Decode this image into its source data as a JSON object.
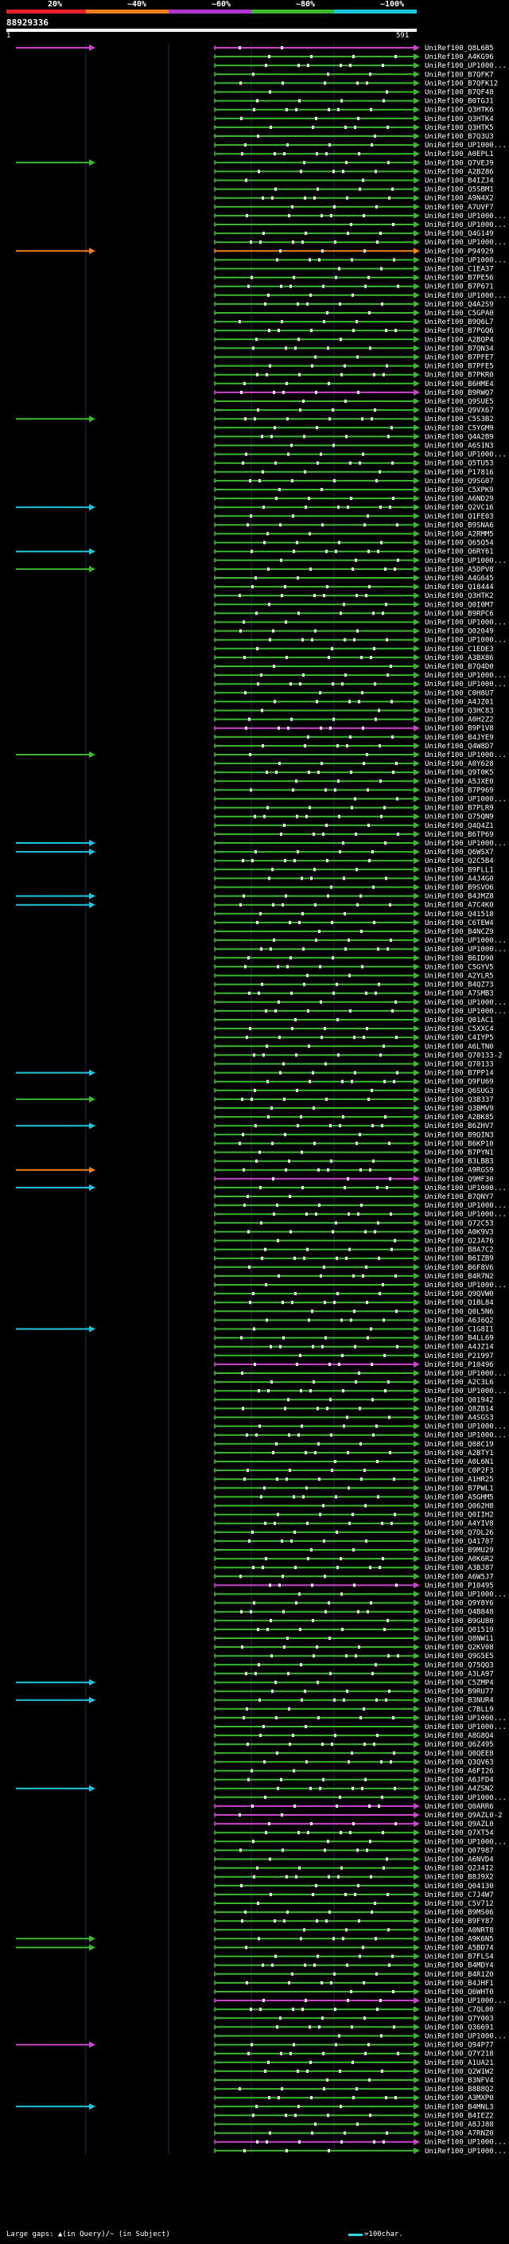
{
  "header": {
    "pct_labels": [
      "20%",
      "~40%",
      "~60%",
      "~80%",
      "~100%"
    ],
    "pct_colors": [
      "#e8202a",
      "#f07f18",
      "#b136cf",
      "#3bb82f",
      "#1cc6dd"
    ],
    "query_id": "88929336",
    "ruler_start": "1",
    "ruler_end": "591"
  },
  "hits": [
    {
      "label": "UniRef100_Q8L6B5",
      "color": "#cc44cc"
    },
    {
      "label": "UniRef100_A4KG96",
      "color": "#3bb82f"
    },
    {
      "label": "UniRef100_UP1000...",
      "color": "#3bb82f"
    },
    {
      "label": "UniRef100_B7QFK7",
      "color": "#3bb82f"
    },
    {
      "label": "UniRef100_B7QFK12",
      "color": "#3bb82f"
    },
    {
      "label": "UniRef100_B7QF48",
      "color": "#3bb82f"
    },
    {
      "label": "UniRef100_B0TGJ1",
      "color": "#3bb82f"
    },
    {
      "label": "UniRef100_Q3HTK6",
      "color": "#3bb82f"
    },
    {
      "label": "UniRef100_Q3HTK4",
      "color": "#3bb82f"
    },
    {
      "label": "UniRef100_Q3HTK5",
      "color": "#3bb82f"
    },
    {
      "label": "UniRef100_B7Q3U3",
      "color": "#3bb82f"
    },
    {
      "label": "UniRef100_UP1000...",
      "color": "#3bb82f"
    },
    {
      "label": "UniRef100_A0EPL1",
      "color": "#3bb82f"
    },
    {
      "label": "UniRef100_Q7VEJ9",
      "color": "#3bb82f"
    },
    {
      "label": "UniRef100_A2BZ86",
      "color": "#3bb82f"
    },
    {
      "label": "UniRef100_B4IZJ4",
      "color": "#3bb82f"
    },
    {
      "label": "UniRef100_Q5SBM1",
      "color": "#3bb82f"
    },
    {
      "label": "UniRef100_A9N4X2",
      "color": "#3bb82f"
    },
    {
      "label": "UniRef100_A7UVF7",
      "color": "#3bb82f"
    },
    {
      "label": "UniRef100_UP1000...",
      "color": "#3bb82f"
    },
    {
      "label": "UniRef100_UP1000...",
      "color": "#3bb82f"
    },
    {
      "label": "UniRef100_Q4G149",
      "color": "#3bb82f"
    },
    {
      "label": "UniRef100_UP1000...",
      "color": "#3bb82f"
    },
    {
      "label": "UniRef100_P94929",
      "color": "#f07f18"
    },
    {
      "label": "UniRef100_UP1000...",
      "color": "#3bb82f"
    },
    {
      "label": "UniRef100_C1EA37",
      "color": "#3bb82f"
    },
    {
      "label": "UniRef100_B7PE56",
      "color": "#3bb82f"
    },
    {
      "label": "UniRef100_B7P671",
      "color": "#3bb82f"
    },
    {
      "label": "UniRef100_UP1000...",
      "color": "#3bb82f"
    },
    {
      "label": "UniRef100_Q4A2S9",
      "color": "#3bb82f"
    },
    {
      "label": "UniRef100_C5GPA0",
      "color": "#3bb82f"
    },
    {
      "label": "UniRef100_B9Q6L7",
      "color": "#3bb82f"
    },
    {
      "label": "UniRef100_B7PGQ6",
      "color": "#3bb82f"
    },
    {
      "label": "UniRef100_A2BQP4",
      "color": "#3bb82f"
    },
    {
      "label": "UniRef100_B7QN34",
      "color": "#3bb82f"
    },
    {
      "label": "UniRef100_B7PFE7",
      "color": "#3bb82f"
    },
    {
      "label": "UniRef100_B7PFE5",
      "color": "#3bb82f"
    },
    {
      "label": "UniRef100_B7PKR0",
      "color": "#3bb82f"
    },
    {
      "label": "UniRef100_B6HME4",
      "color": "#3bb82f"
    },
    {
      "label": "UniRef100_B9RWQ7",
      "color": "#cc44cc"
    },
    {
      "label": "UniRef100_Q9SUE5",
      "color": "#3bb82f"
    },
    {
      "label": "UniRef100_Q9VX67",
      "color": "#3bb82f"
    },
    {
      "label": "UniRef100_C5S3B2",
      "color": "#3bb82f"
    },
    {
      "label": "UniRef100_C5YGM9",
      "color": "#3bb82f"
    },
    {
      "label": "UniRef100_Q4A2B9",
      "color": "#3bb82f"
    },
    {
      "label": "UniRef100_A6S1N3",
      "color": "#3bb82f"
    },
    {
      "label": "UniRef100_UP1000...",
      "color": "#3bb82f"
    },
    {
      "label": "UniRef100_Q5TU53",
      "color": "#3bb82f"
    },
    {
      "label": "UniRef100_P17816",
      "color": "#3bb82f"
    },
    {
      "label": "UniRef100_Q9SG07",
      "color": "#3bb82f"
    },
    {
      "label": "UniRef100_C5XPK9",
      "color": "#3bb82f"
    },
    {
      "label": "UniRef100_A6ND29",
      "color": "#3bb82f"
    },
    {
      "label": "UniRef100_Q2VC16",
      "color": "#3bb82f"
    },
    {
      "label": "UniRef100_Q1FE03",
      "color": "#3bb82f"
    },
    {
      "label": "UniRef100_B9SNA6",
      "color": "#3bb82f"
    },
    {
      "label": "UniRef100_A2RMM5",
      "color": "#3bb82f"
    },
    {
      "label": "UniRef100_Q65Q54",
      "color": "#3bb82f"
    },
    {
      "label": "UniRef100_Q6RY61",
      "color": "#3bb82f"
    },
    {
      "label": "UniRef100_UP1000...",
      "color": "#3bb82f"
    },
    {
      "label": "UniRef100_A5DPV8",
      "color": "#3bb82f"
    },
    {
      "label": "UniRef100_A4G645",
      "color": "#3bb82f"
    },
    {
      "label": "UniRef100_Q18444",
      "color": "#3bb82f"
    },
    {
      "label": "UniRef100_Q3HTK2",
      "color": "#3bb82f"
    },
    {
      "label": "UniRef100_Q0I0M7",
      "color": "#3bb82f"
    },
    {
      "label": "UniRef100_B9RPC6",
      "color": "#3bb82f"
    },
    {
      "label": "UniRef100_UP1000...",
      "color": "#3bb82f"
    },
    {
      "label": "UniRef100_Q02049",
      "color": "#3bb82f"
    },
    {
      "label": "UniRef100_UP1000...",
      "color": "#3bb82f"
    },
    {
      "label": "UniRef100_C1EDE3",
      "color": "#3bb82f"
    },
    {
      "label": "UniRef100_A3BX86",
      "color": "#3bb82f"
    },
    {
      "label": "UniRef100_B7Q4D0",
      "color": "#3bb82f"
    },
    {
      "label": "UniRef100_UP1000...",
      "color": "#3bb82f"
    },
    {
      "label": "UniRef100_UP1000...",
      "color": "#3bb82f"
    },
    {
      "label": "UniRef100_C0H8U7",
      "color": "#3bb82f"
    },
    {
      "label": "UniRef100_A4JZ01",
      "color": "#3bb82f"
    },
    {
      "label": "UniRef100_Q3HC83",
      "color": "#3bb82f"
    },
    {
      "label": "UniRef100_A0H2Z2",
      "color": "#3bb82f"
    },
    {
      "label": "UniRef100_B9P1V8",
      "color": "#cc44cc"
    },
    {
      "label": "UniRef100_B4JYE9",
      "color": "#3bb82f"
    },
    {
      "label": "UniRef100_Q4W8D7",
      "color": "#3bb82f"
    },
    {
      "label": "UniRef100_UP1000...",
      "color": "#3bb82f"
    },
    {
      "label": "UniRef100_A0Y628",
      "color": "#3bb82f"
    },
    {
      "label": "UniRef100_Q9T0K5",
      "color": "#3bb82f"
    },
    {
      "label": "UniRef100_A5JXE0",
      "color": "#3bb82f"
    },
    {
      "label": "UniRef100_B7P969",
      "color": "#3bb82f"
    },
    {
      "label": "UniRef100_UP1000...",
      "color": "#3bb82f"
    },
    {
      "label": "UniRef100_B7PLR9",
      "color": "#3bb82f"
    },
    {
      "label": "UniRef100_Q75QN9",
      "color": "#3bb82f"
    },
    {
      "label": "UniRef100_Q4Q4Z1",
      "color": "#3bb82f"
    },
    {
      "label": "UniRef100_B6TP69",
      "color": "#3bb82f"
    },
    {
      "label": "UniRef100_UP1000...",
      "color": "#3bb82f"
    },
    {
      "label": "UniRef100_Q6WSX7",
      "color": "#3bb82f"
    },
    {
      "label": "UniRef100_Q2C5B4",
      "color": "#3bb82f"
    },
    {
      "label": "UniRef100_B9FLL1",
      "color": "#3bb82f"
    },
    {
      "label": "UniRef100_A4J4G0",
      "color": "#3bb82f"
    },
    {
      "label": "UniRef100_B9SVO6",
      "color": "#3bb82f"
    },
    {
      "label": "UniRef100_B4JMZ8",
      "color": "#3bb82f"
    },
    {
      "label": "UniRef100_A7C4K0",
      "color": "#3bb82f"
    },
    {
      "label": "UniRef100_Q41518",
      "color": "#3bb82f"
    },
    {
      "label": "UniRef100_C6TEW4",
      "color": "#3bb82f"
    },
    {
      "label": "UniRef100_B4NCZ9",
      "color": "#3bb82f"
    },
    {
      "label": "UniRef100_UP1000...",
      "color": "#3bb82f"
    },
    {
      "label": "UniRef100_UP1000...",
      "color": "#3bb82f"
    },
    {
      "label": "UniRef100_B6ID90",
      "color": "#3bb82f"
    },
    {
      "label": "UniRef100_C5GYV5",
      "color": "#3bb82f"
    },
    {
      "label": "UniRef100_A2YLR5",
      "color": "#3bb82f"
    },
    {
      "label": "UniRef100_B4QZ73",
      "color": "#3bb82f"
    },
    {
      "label": "UniRef100_A7SMB3",
      "color": "#3bb82f"
    },
    {
      "label": "UniRef100_UP1000...",
      "color": "#3bb82f"
    },
    {
      "label": "UniRef100_UP1000...",
      "color": "#3bb82f"
    },
    {
      "label": "UniRef100_Q01AC1",
      "color": "#3bb82f"
    },
    {
      "label": "UniRef100_C5XXC4",
      "color": "#3bb82f"
    },
    {
      "label": "UniRef100_C4IYP5",
      "color": "#3bb82f"
    },
    {
      "label": "UniRef100_A6LTN0",
      "color": "#3bb82f"
    },
    {
      "label": "UniRef100_Q70133-2",
      "color": "#3bb82f"
    },
    {
      "label": "UniRef100_Q70133",
      "color": "#3bb82f"
    },
    {
      "label": "UniRef100_B7PP14",
      "color": "#3bb82f"
    },
    {
      "label": "UniRef100_Q9FU69",
      "color": "#3bb82f"
    },
    {
      "label": "UniRef100_Q6SUG3",
      "color": "#3bb82f"
    },
    {
      "label": "UniRef100_Q3B337",
      "color": "#3bb82f"
    },
    {
      "label": "UniRef100_Q3BMV9",
      "color": "#3bb82f"
    },
    {
      "label": "UniRef100_A2BK85",
      "color": "#3bb82f"
    },
    {
      "label": "UniRef100_B6ZHV7",
      "color": "#3bb82f"
    },
    {
      "label": "UniRef100_B9QIN3",
      "color": "#3bb82f"
    },
    {
      "label": "UniRef100_B6KP10",
      "color": "#3bb82f"
    },
    {
      "label": "UniRef100_B7PYN1",
      "color": "#3bb82f"
    },
    {
      "label": "UniRef100_B3LBB3",
      "color": "#3bb82f"
    },
    {
      "label": "UniRef100_A9RGS9",
      "color": "#3bb82f"
    },
    {
      "label": "UniRef100_Q9MF30",
      "color": "#cc44cc"
    },
    {
      "label": "UniRef100_UP1000...",
      "color": "#3bb82f"
    },
    {
      "label": "UniRef100_B7QNY7",
      "color": "#3bb82f"
    },
    {
      "label": "UniRef100_UP1000...",
      "color": "#3bb82f"
    },
    {
      "label": "UniRef100_UP1000...",
      "color": "#3bb82f"
    },
    {
      "label": "UniRef100_Q72C53",
      "color": "#3bb82f"
    },
    {
      "label": "UniRef100_A0K9V3",
      "color": "#3bb82f"
    },
    {
      "label": "UniRef100_Q2JA76",
      "color": "#3bb82f"
    },
    {
      "label": "UniRef100_B8A7C2",
      "color": "#3bb82f"
    },
    {
      "label": "UniRef100_B6IZB9",
      "color": "#3bb82f"
    },
    {
      "label": "UniRef100_B6F8V6",
      "color": "#3bb82f"
    },
    {
      "label": "UniRef100_B4R7N2",
      "color": "#3bb82f"
    },
    {
      "label": "UniRef100_UP1000...",
      "color": "#3bb82f"
    },
    {
      "label": "UniRef100_Q9QVW0",
      "color": "#3bb82f"
    },
    {
      "label": "UniRef100_Q1BL84",
      "color": "#3bb82f"
    },
    {
      "label": "UniRef100_Q0L5N6",
      "color": "#3bb82f"
    },
    {
      "label": "UniRef100_A6J6Q2",
      "color": "#3bb82f"
    },
    {
      "label": "UniRef100_C1G8I1",
      "color": "#3bb82f"
    },
    {
      "label": "UniRef100_B4LL69",
      "color": "#3bb82f"
    },
    {
      "label": "UniRef100_A4JZ14",
      "color": "#3bb82f"
    },
    {
      "label": "UniRef100_P21997",
      "color": "#3bb82f"
    },
    {
      "label": "UniRef100_P10496",
      "color": "#cc44cc"
    },
    {
      "label": "UniRef100_UP1000...",
      "color": "#3bb82f"
    },
    {
      "label": "UniRef100_A2C3L6",
      "color": "#3bb82f"
    },
    {
      "label": "UniRef100_UP1000...",
      "color": "#3bb82f"
    },
    {
      "label": "UniRef100_Q01942",
      "color": "#3bb82f"
    },
    {
      "label": "UniRef100_Q8ZB14",
      "color": "#3bb82f"
    },
    {
      "label": "UniRef100_A4SGS3",
      "color": "#3bb82f"
    },
    {
      "label": "UniRef100_UP1000...",
      "color": "#3bb82f"
    },
    {
      "label": "UniRef100_UP1000...",
      "color": "#3bb82f"
    },
    {
      "label": "UniRef100_Q08C19",
      "color": "#3bb82f"
    },
    {
      "label": "UniRef100_A2BTY1",
      "color": "#3bb82f"
    },
    {
      "label": "UniRef100_A0L6N1",
      "color": "#3bb82f"
    },
    {
      "label": "UniRef100_C0P2F3",
      "color": "#3bb82f"
    },
    {
      "label": "UniRef100_A1HR25",
      "color": "#3bb82f"
    },
    {
      "label": "UniRef100_B7PWL1",
      "color": "#3bb82f"
    },
    {
      "label": "UniRef100_A5GHM5",
      "color": "#3bb82f"
    },
    {
      "label": "UniRef100_Q062H8",
      "color": "#3bb82f"
    },
    {
      "label": "UniRef100_Q0IIH2",
      "color": "#3bb82f"
    },
    {
      "label": "UniRef100_A4YIV8",
      "color": "#3bb82f"
    },
    {
      "label": "UniRef100_Q7DL26",
      "color": "#3bb82f"
    },
    {
      "label": "UniRef100_Q41707",
      "color": "#3bb82f"
    },
    {
      "label": "UniRef100_B9MU29",
      "color": "#3bb82f"
    },
    {
      "label": "UniRef100_A0K6R2",
      "color": "#3bb82f"
    },
    {
      "label": "UniRef100_A3BJ87",
      "color": "#3bb82f"
    },
    {
      "label": "UniRef100_A6W5J7",
      "color": "#3bb82f"
    },
    {
      "label": "UniRef100_P10495",
      "color": "#cc44cc"
    },
    {
      "label": "UniRef100_UP1000...",
      "color": "#3bb82f"
    },
    {
      "label": "UniRef100_Q9Y8Y6",
      "color": "#3bb82f"
    },
    {
      "label": "UniRef100_Q4B848",
      "color": "#3bb82f"
    },
    {
      "label": "UniRef100_B9GU80",
      "color": "#3bb82f"
    },
    {
      "label": "UniRef100_Q01519",
      "color": "#3bb82f"
    },
    {
      "label": "UniRef100_Q8NW11",
      "color": "#3bb82f"
    },
    {
      "label": "UniRef100_Q2KV08",
      "color": "#3bb82f"
    },
    {
      "label": "UniRef100_Q9G5E5",
      "color": "#3bb82f"
    },
    {
      "label": "UniRef100_Q75QQ3",
      "color": "#3bb82f"
    },
    {
      "label": "UniRef100_A3LA97",
      "color": "#3bb82f"
    },
    {
      "label": "UniRef100_C5ZMP4",
      "color": "#3bb82f"
    },
    {
      "label": "UniRef100_B9RU77",
      "color": "#3bb82f"
    },
    {
      "label": "UniRef100_B3NUR4",
      "color": "#3bb82f"
    },
    {
      "label": "UniRef100_C7BLL9",
      "color": "#3bb82f"
    },
    {
      "label": "UniRef100_UP1000...",
      "color": "#3bb82f"
    },
    {
      "label": "UniRef100_UP1000...",
      "color": "#3bb82f"
    },
    {
      "label": "UniRef100_A8G8Q4",
      "color": "#3bb82f"
    },
    {
      "label": "UniRef100_Q6Z495",
      "color": "#3bb82f"
    },
    {
      "label": "UniRef100_Q0QEE8",
      "color": "#3bb82f"
    },
    {
      "label": "UniRef100_Q3QV63",
      "color": "#3bb82f"
    },
    {
      "label": "UniRef100_A6FI26",
      "color": "#3bb82f"
    },
    {
      "label": "UniRef100_A6JFD4",
      "color": "#3bb82f"
    },
    {
      "label": "UniRef100_A4ZSN2",
      "color": "#3bb82f"
    },
    {
      "label": "UniRef100_UP1000...",
      "color": "#3bb82f"
    },
    {
      "label": "UniRef100_Q0ARR6",
      "color": "#cc44cc"
    },
    {
      "label": "UniRef100_Q9AZL0-2",
      "color": "#cc44cc"
    },
    {
      "label": "UniRef100_Q9AZL0",
      "color": "#cc44cc"
    },
    {
      "label": "UniRef100_Q7XT54",
      "color": "#3bb82f"
    },
    {
      "label": "UniRef100_UP1000...",
      "color": "#3bb82f"
    },
    {
      "label": "UniRef100_Q07987",
      "color": "#3bb82f"
    },
    {
      "label": "UniRef100_A6NVD4",
      "color": "#3bb82f"
    },
    {
      "label": "UniRef100_Q2J4I2",
      "color": "#3bb82f"
    },
    {
      "label": "UniRef100_B8J9X2",
      "color": "#3bb82f"
    },
    {
      "label": "UniRef100_Q04130",
      "color": "#3bb82f"
    },
    {
      "label": "UniRef100_C7J4W7",
      "color": "#3bb82f"
    },
    {
      "label": "UniRef100_C5V712",
      "color": "#3bb82f"
    },
    {
      "label": "UniRef100_B9MS06",
      "color": "#3bb82f"
    },
    {
      "label": "UniRef100_B9FY87",
      "color": "#3bb82f"
    },
    {
      "label": "UniRef100_A0NRT8",
      "color": "#3bb82f"
    },
    {
      "label": "UniRef100_A9K6N5",
      "color": "#3bb82f"
    },
    {
      "label": "UniRef100_A5BD74",
      "color": "#3bb82f"
    },
    {
      "label": "UniRef100_B7FLS4",
      "color": "#3bb82f"
    },
    {
      "label": "UniRef100_B4MDY4",
      "color": "#3bb82f"
    },
    {
      "label": "UniRef100_B4R1Z0",
      "color": "#3bb82f"
    },
    {
      "label": "UniRef100_B4JHF1",
      "color": "#3bb82f"
    },
    {
      "label": "UniRef100_Q6WHT0",
      "color": "#3bb82f"
    },
    {
      "label": "UniRef100_UP1000...",
      "color": "#cc44cc"
    },
    {
      "label": "UniRef100_C7QL00",
      "color": "#3bb82f"
    },
    {
      "label": "UniRef100_Q7Y003",
      "color": "#3bb82f"
    },
    {
      "label": "UniRef100_Q36691",
      "color": "#3bb82f"
    },
    {
      "label": "UniRef100_UP1000...",
      "color": "#3bb82f"
    },
    {
      "label": "UniRef100_Q94P77",
      "color": "#3bb82f"
    },
    {
      "label": "UniRef100_Q7Y218",
      "color": "#3bb82f"
    },
    {
      "label": "UniRef100_A1UA21",
      "color": "#3bb82f"
    },
    {
      "label": "UniRef100_Q2W1W2",
      "color": "#3bb82f"
    },
    {
      "label": "UniRef100_B3NFV4",
      "color": "#3bb82f"
    },
    {
      "label": "UniRef100_B8B8Q2",
      "color": "#3bb82f"
    },
    {
      "label": "UniRef100_A3MXP0",
      "color": "#3bb82f"
    },
    {
      "label": "UniRef100_B4MNL3",
      "color": "#3bb82f"
    },
    {
      "label": "UniRef100_B4IEZ2",
      "color": "#3bb82f"
    },
    {
      "label": "UniRef100_A8JJ88",
      "color": "#3bb82f"
    },
    {
      "label": "UniRef100_A7RNZ0",
      "color": "#3bb82f"
    },
    {
      "label": "UniRef100_UP1000...",
      "color": "#cc44cc"
    },
    {
      "label": "UniRef100_UP1000...",
      "color": "#3bb82f"
    }
  ],
  "extra_hits": [
    {
      "row": 0,
      "color": "#cc44cc"
    },
    {
      "row": 13,
      "color": "#3bb82f"
    },
    {
      "row": 23,
      "color": "#f07f18"
    },
    {
      "row": 42,
      "color": "#3bb82f"
    },
    {
      "row": 52,
      "color": "#1cc6dd"
    },
    {
      "row": 57,
      "color": "#1cc6dd"
    },
    {
      "row": 59,
      "color": "#3bb82f"
    },
    {
      "row": 80,
      "color": "#3bb82f"
    },
    {
      "row": 90,
      "color": "#1cc6dd"
    },
    {
      "row": 91,
      "color": "#1cc6dd"
    },
    {
      "row": 96,
      "color": "#1cc6dd"
    },
    {
      "row": 97,
      "color": "#1cc6dd"
    },
    {
      "row": 116,
      "color": "#1cc6dd"
    },
    {
      "row": 119,
      "color": "#3bb82f"
    },
    {
      "row": 122,
      "color": "#1cc6dd"
    },
    {
      "row": 127,
      "color": "#f07f18"
    },
    {
      "row": 129,
      "color": "#1cc6dd"
    },
    {
      "row": 145,
      "color": "#1cc6dd"
    },
    {
      "row": 185,
      "color": "#1cc6dd"
    },
    {
      "row": 187,
      "color": "#1cc6dd"
    },
    {
      "row": 197,
      "color": "#1cc6dd"
    },
    {
      "row": 214,
      "color": "#3bb82f"
    },
    {
      "row": 215,
      "color": "#3bb82f"
    },
    {
      "row": 226,
      "color": "#cc44cc"
    },
    {
      "row": 233,
      "color": "#1cc6dd"
    }
  ],
  "footer": {
    "left": "Large gaps: ▲(in Query)/~ (in Subject)",
    "right": "=100char."
  }
}
